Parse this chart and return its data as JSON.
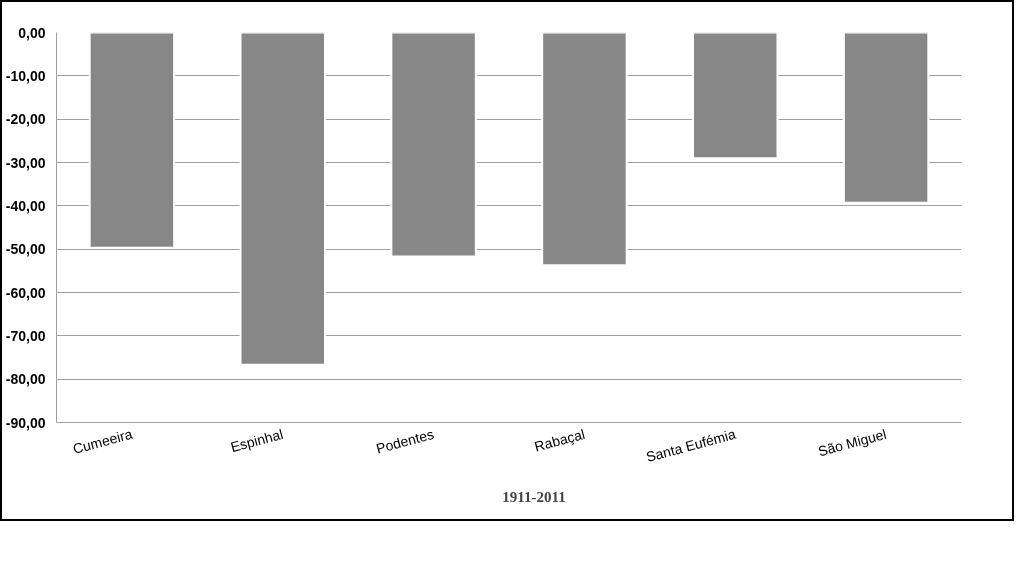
{
  "chart_data": {
    "type": "bar",
    "categories": [
      "Cumeeira",
      "Espinhal",
      "Podentes",
      "Rabaçal",
      "Santa Eufémia",
      "São Miguel"
    ],
    "series": [
      {
        "name": "1911-2011",
        "color": "#878787",
        "values": [
          -49.7,
          -76.7,
          -51.7,
          -53.7,
          -29.0,
          -39.3
        ]
      }
    ],
    "ylim": [
      -90,
      0
    ],
    "yticks": [
      {
        "value": 0,
        "label": "0,00"
      },
      {
        "value": -10,
        "label": "-10,00"
      },
      {
        "value": -20,
        "label": "-20,00"
      },
      {
        "value": -30,
        "label": "-30,00"
      },
      {
        "value": -40,
        "label": "-40,00"
      },
      {
        "value": -50,
        "label": "-50,00"
      },
      {
        "value": -60,
        "label": "-60,00"
      },
      {
        "value": -70,
        "label": "-70,00"
      },
      {
        "value": -80,
        "label": "-80,00"
      },
      {
        "value": -90,
        "label": "-90,00"
      }
    ],
    "grid": "y",
    "legend": "bottom"
  }
}
